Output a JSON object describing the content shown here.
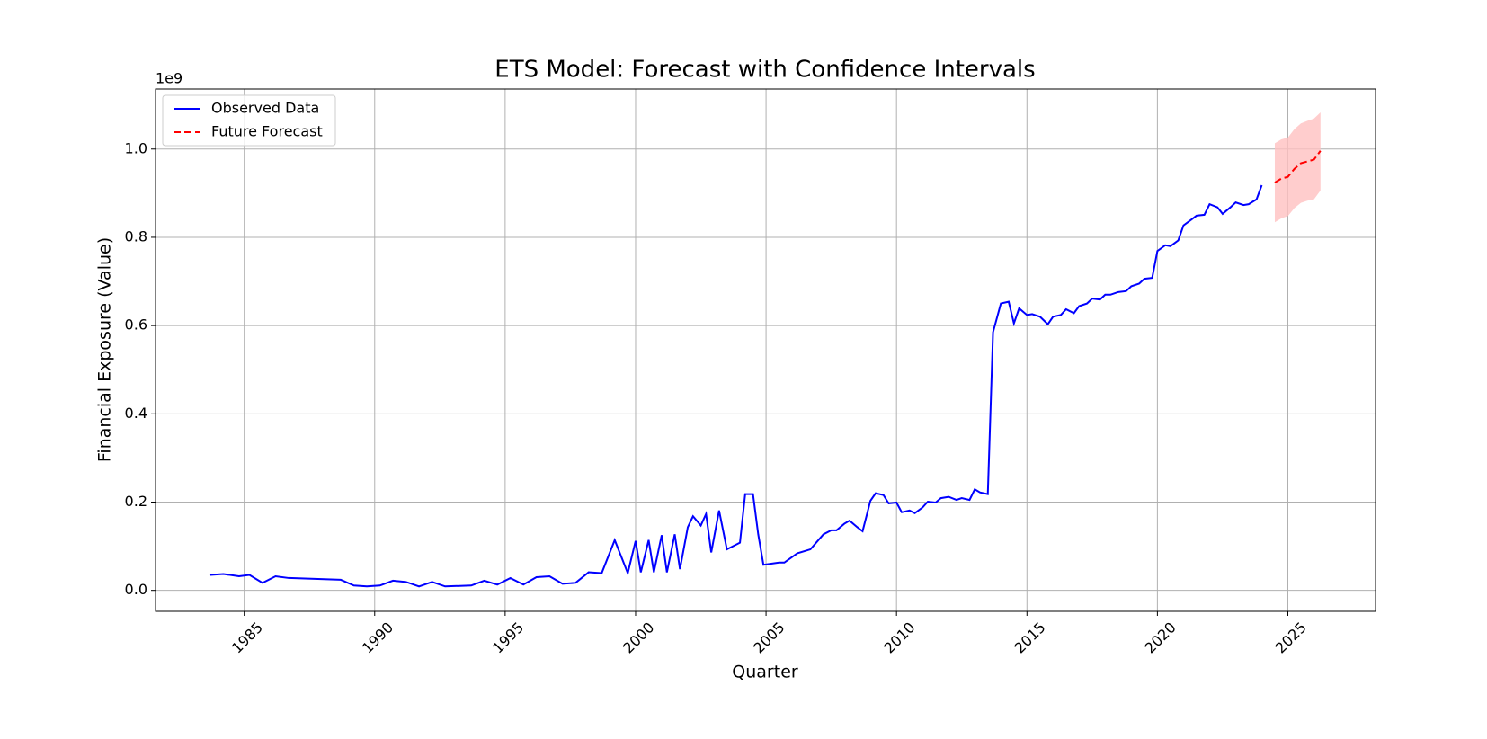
{
  "chart_data": {
    "type": "line",
    "title": "ETS Model: Forecast with Confidence Intervals",
    "x_label": "Quarter",
    "y_label": "Financial Exposure (Value)",
    "y_offset_label": "1e9",
    "xlim": [
      1981.6,
      2028.36
    ],
    "ylim": [
      -0.0475,
      1.136
    ],
    "xticks": [
      1985,
      1990,
      1995,
      2000,
      2005,
      2010,
      2015,
      2020,
      2025
    ],
    "yticks": [
      {
        "value": 0,
        "label": "0.0"
      },
      {
        "value": 0.2,
        "label": "0.2"
      },
      {
        "value": 0.4,
        "label": "0.4"
      },
      {
        "value": 0.6,
        "label": "0.6"
      },
      {
        "value": 0.8,
        "label": "0.8"
      },
      {
        "value": 1.0,
        "label": "1.0"
      }
    ],
    "grid": true,
    "legend": "upper left",
    "series": [
      {
        "name": "Observed Data",
        "color": "#0000ff",
        "dash": "solid",
        "x": [
          1983.7,
          1984.2,
          1984.8,
          1985.2,
          1985.7,
          1986.2,
          1986.7,
          1988.7,
          1989.2,
          1989.7,
          1990.2,
          1990.7,
          1991.2,
          1991.7,
          1992.2,
          1992.7,
          1993.7,
          1994.2,
          1994.7,
          1995.2,
          1995.7,
          1996.2,
          1996.7,
          1997.2,
          1997.7,
          1998.2,
          1998.7,
          1999.2,
          1999.7,
          2000.0,
          2000.2,
          2000.5,
          2000.7,
          2001.0,
          2001.2,
          2001.5,
          2001.7,
          2002.0,
          2002.2,
          2002.5,
          2002.7,
          2002.9,
          2003.2,
          2003.5,
          2004.0,
          2004.2,
          2004.5,
          2004.7,
          2004.9,
          2005.5,
          2005.7,
          2006.2,
          2006.7,
          2007.2,
          2007.5,
          2007.7,
          2008.0,
          2008.2,
          2008.5,
          2008.7,
          2009.0,
          2009.2,
          2009.5,
          2009.7,
          2010.0,
          2010.2,
          2010.5,
          2010.7,
          2011.0,
          2011.2,
          2011.5,
          2011.7,
          2012.0,
          2012.3,
          2012.5,
          2012.8,
          2013.0,
          2013.2,
          2013.5,
          2013.7,
          2014.0,
          2014.3,
          2014.5,
          2014.7,
          2015.0,
          2015.2,
          2015.5,
          2015.8,
          2016.0,
          2016.3,
          2016.5,
          2016.8,
          2017.0,
          2017.3,
          2017.5,
          2017.8,
          2018.0,
          2018.2,
          2018.5,
          2018.8,
          2019.0,
          2019.3,
          2019.5,
          2019.8,
          2020.0,
          2020.3,
          2020.5,
          2020.8,
          2021.0,
          2021.3,
          2021.5,
          2021.8,
          2022.0,
          2022.3,
          2022.5,
          2022.8,
          2023.0,
          2023.3,
          2023.5,
          2023.8,
          2024.0
        ],
        "values": [
          0.035,
          0.037,
          0.032,
          0.035,
          0.017,
          0.032,
          0.028,
          0.024,
          0.011,
          0.009,
          0.011,
          0.022,
          0.019,
          0.009,
          0.019,
          0.009,
          0.011,
          0.022,
          0.013,
          0.028,
          0.013,
          0.03,
          0.032,
          0.015,
          0.017,
          0.041,
          0.039,
          0.114,
          0.039,
          0.112,
          0.041,
          0.114,
          0.041,
          0.125,
          0.041,
          0.127,
          0.048,
          0.143,
          0.168,
          0.147,
          0.173,
          0.086,
          0.181,
          0.093,
          0.108,
          0.218,
          0.218,
          0.127,
          0.058,
          0.063,
          0.063,
          0.084,
          0.093,
          0.127,
          0.136,
          0.136,
          0.151,
          0.158,
          0.143,
          0.134,
          0.203,
          0.22,
          0.216,
          0.197,
          0.199,
          0.177,
          0.181,
          0.175,
          0.188,
          0.201,
          0.199,
          0.209,
          0.212,
          0.205,
          0.209,
          0.205,
          0.229,
          0.222,
          0.218,
          0.585,
          0.65,
          0.654,
          0.605,
          0.639,
          0.624,
          0.626,
          0.62,
          0.603,
          0.62,
          0.624,
          0.637,
          0.628,
          0.644,
          0.65,
          0.661,
          0.659,
          0.67,
          0.67,
          0.676,
          0.678,
          0.689,
          0.695,
          0.706,
          0.708,
          0.769,
          0.782,
          0.78,
          0.793,
          0.827,
          0.84,
          0.849,
          0.851,
          0.875,
          0.868,
          0.853,
          0.868,
          0.879,
          0.873,
          0.875,
          0.886,
          0.918
        ]
      },
      {
        "name": "Future Forecast",
        "color": "#ff0000",
        "dash": "dashed",
        "x": [
          2024.5,
          2024.75,
          2025.0,
          2025.25,
          2025.5,
          2025.75,
          2026.0,
          2026.25
        ],
        "values": [
          0.924,
          0.933,
          0.937,
          0.955,
          0.968,
          0.972,
          0.976,
          0.996
        ]
      }
    ],
    "interval": {
      "color": "#ffc0c0",
      "x": [
        2024.5,
        2024.75,
        2025.0,
        2025.25,
        2025.5,
        2025.75,
        2026.0,
        2026.25
      ],
      "upper": [
        1.013,
        1.022,
        1.026,
        1.045,
        1.058,
        1.064,
        1.069,
        1.083
      ],
      "lower": [
        0.834,
        0.843,
        0.848,
        0.866,
        0.878,
        0.883,
        0.886,
        0.906
      ]
    }
  }
}
